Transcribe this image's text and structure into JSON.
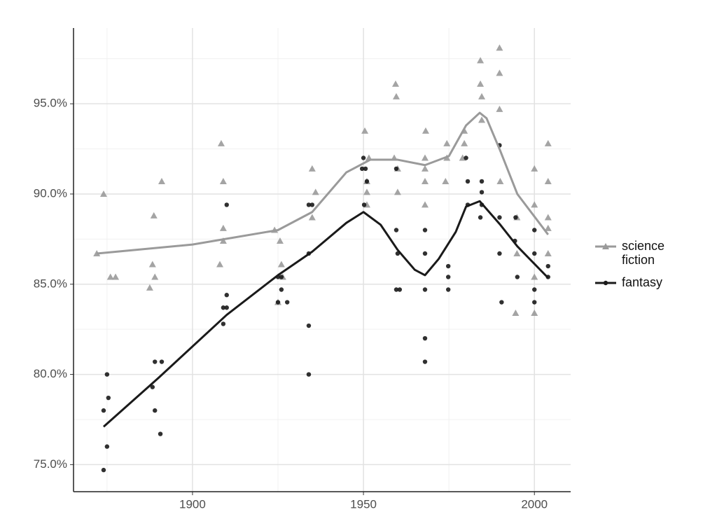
{
  "chart_data": {
    "type": "scatter",
    "xlim": [
      1865.2,
      2010.6
    ],
    "ylim": [
      73.5,
      99.2
    ],
    "xticks": [
      1900,
      1950,
      2000
    ],
    "yticks": [
      {
        "value": 75,
        "label": "75.0%"
      },
      {
        "value": 80,
        "label": "80.0%"
      },
      {
        "value": 85,
        "label": "85.0%"
      },
      {
        "value": 90,
        "label": "90.0%"
      },
      {
        "value": 95,
        "label": "95.0%"
      }
    ],
    "x_minor_ticks": [
      1875,
      1925,
      1975
    ],
    "y_minor_ticks": [
      77.5,
      82.5,
      87.5,
      92.5,
      97.5
    ],
    "grid": true,
    "legend": "right",
    "series": [
      {
        "name": "science fiction",
        "color": "#9a9a9a",
        "marker": "triangle",
        "x": [
          1872,
          1874,
          1876,
          1877.5,
          1888.7,
          1888.3,
          1889,
          1887.5,
          1891,
          1908.4,
          1909,
          1909,
          1909,
          1908,
          1924,
          1925.6,
          1926,
          1926.4,
          1925,
          1935,
          1936,
          1935,
          1950.4,
          1951.6,
          1951,
          1951,
          1951,
          1959.4,
          1959.6,
          1959,
          1960,
          1960,
          1968.2,
          1968,
          1968,
          1968,
          1968,
          1974.4,
          1974.4,
          1974,
          1979.5,
          1979.5,
          1979,
          1984.2,
          1984.2,
          1984.6,
          1984.6,
          1989.8,
          1989.8,
          1989.8,
          1990,
          1994.9,
          1994.9,
          1994.5,
          2000,
          2000,
          2000,
          2000,
          2004,
          2004,
          2004,
          2004,
          2004
        ],
        "values": [
          86.7,
          90,
          85.4,
          85.4,
          88.8,
          86.1,
          85.4,
          84.8,
          90.7,
          92.8,
          90.7,
          88.1,
          87.4,
          86.1,
          88,
          87.4,
          86.1,
          85.4,
          84,
          91.4,
          90.1,
          88.7,
          93.5,
          92,
          90.7,
          90.1,
          89.4,
          96.1,
          95.4,
          92,
          91.4,
          90.1,
          93.5,
          92,
          91.4,
          90.7,
          89.4,
          92.8,
          92,
          90.7,
          93.5,
          92.8,
          92,
          97.4,
          96.1,
          95.4,
          94.1,
          98.1,
          96.7,
          94.7,
          90.7,
          88.7,
          86.7,
          83.4,
          91.4,
          89.4,
          85.4,
          83.4,
          92.8,
          90.7,
          88.7,
          88.1,
          86.7
        ],
        "trend": {
          "x": [
            1872,
            1900,
            1925,
            1935,
            1945,
            1952,
            1960,
            1968,
            1975,
            1980,
            1984,
            1986,
            1990,
            1995,
            2004
          ],
          "values": [
            86.7,
            87.2,
            88,
            89,
            91.2,
            91.9,
            91.9,
            91.6,
            92.1,
            93.8,
            94.5,
            94.2,
            92.4,
            90,
            87.75
          ]
        }
      },
      {
        "name": "fantasy",
        "color": "#1a1a1a",
        "marker": "circle",
        "x": [
          1875,
          1875.4,
          1874,
          1875,
          1874,
          1888.3,
          1889,
          1891,
          1889,
          1890.6,
          1910,
          1909,
          1910,
          1910,
          1909,
          1925,
          1926,
          1926,
          1925,
          1927.7,
          1934,
          1935,
          1934,
          1934,
          1934,
          1950,
          1949.6,
          1950.6,
          1951,
          1950.2,
          1959.6,
          1959.6,
          1960,
          1959.6,
          1960.6,
          1968,
          1968,
          1968,
          1968,
          1968,
          1974.8,
          1974.8,
          1974.8,
          1980,
          1980.5,
          1980.5,
          1984.6,
          1984.6,
          1984.6,
          1984.2,
          1989.8,
          1989.8,
          1989.8,
          1990.4,
          1994.3,
          1995,
          1994.5,
          2000,
          2000,
          2000,
          2000,
          2004,
          2004
        ],
        "values": [
          80,
          78.7,
          78,
          76,
          74.7,
          79.3,
          80.7,
          80.7,
          78,
          76.7,
          89.4,
          83.7,
          83.7,
          84.4,
          82.8,
          85.4,
          85.4,
          84.7,
          84,
          84,
          89.4,
          89.4,
          86.7,
          82.7,
          80,
          92,
          91.4,
          91.4,
          90.7,
          89.4,
          91.4,
          88,
          86.7,
          84.7,
          84.7,
          88,
          86.7,
          84.7,
          82,
          80.7,
          86,
          85.4,
          84.7,
          92,
          90.7,
          89.4,
          90.7,
          90.1,
          89.4,
          88.7,
          92.7,
          88.7,
          86.7,
          84,
          87.4,
          85.4,
          88.7,
          88,
          86.7,
          84.7,
          84,
          86,
          85.4
        ],
        "trend": {
          "x": [
            1874,
            1890,
            1910,
            1925,
            1935,
            1945,
            1950,
            1955,
            1960,
            1965,
            1968,
            1972,
            1977,
            1980,
            1984,
            1990,
            1995,
            2004
          ],
          "values": [
            77.1,
            79.8,
            83.3,
            85.5,
            86.8,
            88.4,
            89,
            88.3,
            86.9,
            85.8,
            85.5,
            86.4,
            87.9,
            89.3,
            89.6,
            88.3,
            87.1,
            85.35
          ]
        }
      }
    ]
  }
}
